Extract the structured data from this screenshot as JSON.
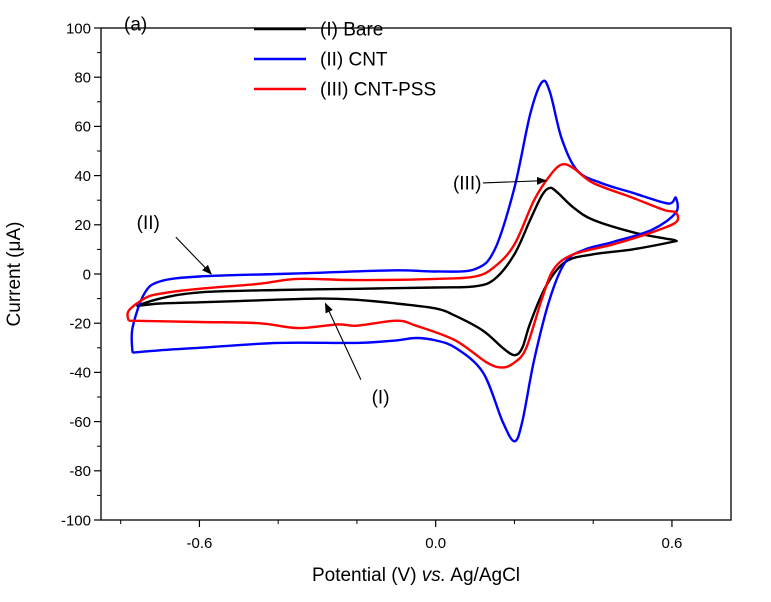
{
  "chart_data": {
    "type": "line",
    "panel_label": "(a)",
    "xlabel_parts": [
      "Potential (V) ",
      "vs.",
      " Ag/AgCl"
    ],
    "ylabel": "Current (μA)",
    "xlim": [
      -0.85,
      0.75
    ],
    "ylim": [
      -100,
      100
    ],
    "xticks": [
      -0.6,
      0.0,
      0.6
    ],
    "xtick_labels": [
      "-0.6",
      "0.0",
      "0.6"
    ],
    "yticks": [
      -100,
      -80,
      -60,
      -40,
      -20,
      0,
      20,
      40,
      60,
      80,
      100
    ],
    "ytick_labels": [
      "-100",
      "-80",
      "-60",
      "-40",
      "-20",
      "0",
      "20",
      "40",
      "60",
      "80",
      "100"
    ],
    "grid": false,
    "legend_position": "top-left",
    "series": [
      {
        "name": "(I) Bare",
        "color": "#000000",
        "points": [
          [
            -0.76,
            -13
          ],
          [
            -0.7,
            -10
          ],
          [
            -0.6,
            -7.5
          ],
          [
            -0.4,
            -6.5
          ],
          [
            -0.2,
            -6
          ],
          [
            0.0,
            -5.5
          ],
          [
            0.1,
            -5
          ],
          [
            0.15,
            -2
          ],
          [
            0.2,
            8
          ],
          [
            0.24,
            22
          ],
          [
            0.27,
            32
          ],
          [
            0.29,
            35
          ],
          [
            0.31,
            33
          ],
          [
            0.35,
            27
          ],
          [
            0.4,
            22
          ],
          [
            0.5,
            17
          ],
          [
            0.58,
            14.5
          ],
          [
            0.6,
            14
          ],
          [
            0.61,
            13.5
          ],
          [
            0.6,
            13
          ],
          [
            0.5,
            10
          ],
          [
            0.4,
            8
          ],
          [
            0.33,
            5
          ],
          [
            0.28,
            -5
          ],
          [
            0.24,
            -20
          ],
          [
            0.22,
            -30
          ],
          [
            0.2,
            -33
          ],
          [
            0.17,
            -30
          ],
          [
            0.12,
            -23
          ],
          [
            0.05,
            -17
          ],
          [
            0.0,
            -14
          ],
          [
            -0.1,
            -12
          ],
          [
            -0.2,
            -10.5
          ],
          [
            -0.3,
            -10
          ],
          [
            -0.5,
            -11
          ],
          [
            -0.6,
            -11.5
          ],
          [
            -0.7,
            -12
          ],
          [
            -0.76,
            -13
          ]
        ]
      },
      {
        "name": "(II) CNT",
        "color": "#0000ff",
        "points": [
          [
            -0.77,
            -32
          ],
          [
            -0.77,
            -22
          ],
          [
            -0.74,
            -8
          ],
          [
            -0.7,
            -3
          ],
          [
            -0.6,
            -1
          ],
          [
            -0.4,
            0
          ],
          [
            -0.3,
            0.5
          ],
          [
            -0.1,
            1.5
          ],
          [
            0.0,
            1
          ],
          [
            0.1,
            2
          ],
          [
            0.15,
            10
          ],
          [
            0.2,
            35
          ],
          [
            0.24,
            65
          ],
          [
            0.27,
            78
          ],
          [
            0.29,
            74
          ],
          [
            0.32,
            55
          ],
          [
            0.36,
            42
          ],
          [
            0.42,
            37
          ],
          [
            0.5,
            33
          ],
          [
            0.58,
            29
          ],
          [
            0.6,
            29
          ],
          [
            0.61,
            31
          ],
          [
            0.61,
            25
          ],
          [
            0.55,
            18
          ],
          [
            0.45,
            13
          ],
          [
            0.38,
            10
          ],
          [
            0.33,
            5
          ],
          [
            0.29,
            -10
          ],
          [
            0.25,
            -35
          ],
          [
            0.22,
            -60
          ],
          [
            0.2,
            -68
          ],
          [
            0.17,
            -60
          ],
          [
            0.12,
            -40
          ],
          [
            0.05,
            -30
          ],
          [
            0.0,
            -27
          ],
          [
            -0.05,
            -26
          ],
          [
            -0.1,
            -27
          ],
          [
            -0.2,
            -28
          ],
          [
            -0.4,
            -28
          ],
          [
            -0.6,
            -30
          ],
          [
            -0.7,
            -31
          ],
          [
            -0.77,
            -32
          ]
        ]
      },
      {
        "name": "(III) CNT-PSS",
        "color": "#ff0000",
        "points": [
          [
            -0.78,
            -19
          ],
          [
            -0.78,
            -15
          ],
          [
            -0.74,
            -10
          ],
          [
            -0.7,
            -8
          ],
          [
            -0.6,
            -6
          ],
          [
            -0.45,
            -4
          ],
          [
            -0.35,
            -2
          ],
          [
            -0.2,
            -2.5
          ],
          [
            0.0,
            -2
          ],
          [
            0.1,
            -1
          ],
          [
            0.15,
            3
          ],
          [
            0.2,
            12
          ],
          [
            0.25,
            30
          ],
          [
            0.29,
            40
          ],
          [
            0.32,
            44.5
          ],
          [
            0.35,
            43
          ],
          [
            0.4,
            37
          ],
          [
            0.5,
            31
          ],
          [
            0.58,
            26
          ],
          [
            0.61,
            25
          ],
          [
            0.61,
            21
          ],
          [
            0.55,
            17
          ],
          [
            0.45,
            12
          ],
          [
            0.35,
            8
          ],
          [
            0.3,
            2
          ],
          [
            0.27,
            -10
          ],
          [
            0.23,
            -30
          ],
          [
            0.2,
            -36
          ],
          [
            0.17,
            -38
          ],
          [
            0.13,
            -36
          ],
          [
            0.05,
            -27
          ],
          [
            -0.05,
            -21
          ],
          [
            -0.1,
            -19
          ],
          [
            -0.2,
            -21
          ],
          [
            -0.25,
            -20.5
          ],
          [
            -0.35,
            -22
          ],
          [
            -0.45,
            -20
          ],
          [
            -0.6,
            -19.5
          ],
          [
            -0.78,
            -19
          ]
        ]
      }
    ],
    "annotations": [
      {
        "label": "(I)",
        "text_at": [
          -0.14,
          -50
        ],
        "arrow_from": [
          -0.19,
          -43
        ],
        "arrow_to": [
          -0.28,
          -12
        ]
      },
      {
        "label": "(II)",
        "text_at": [
          -0.73,
          21
        ],
        "arrow_from": [
          -0.66,
          15
        ],
        "arrow_to": [
          -0.57,
          0
        ]
      },
      {
        "label": "(III)",
        "text_at": [
          0.08,
          37
        ],
        "arrow_from": [
          0.12,
          37
        ],
        "arrow_to": [
          0.28,
          38
        ]
      }
    ]
  }
}
